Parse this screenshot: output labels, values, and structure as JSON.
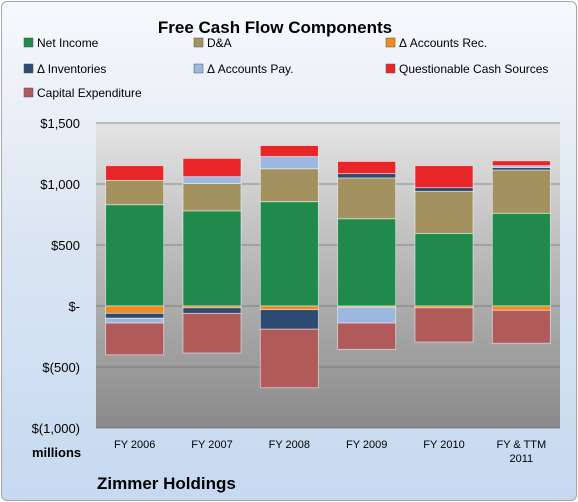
{
  "chart_data": {
    "type": "bar",
    "stacked": true,
    "title": "Free Cash Flow Components",
    "units": "millions",
    "company": "Zimmer Holdings",
    "categories": [
      "FY 2006",
      "FY 2007",
      "FY 2008",
      "FY 2009",
      "FY 2010",
      "FY & TTM 2011"
    ],
    "ylim": [
      -1000,
      1500
    ],
    "yticks": [
      {
        "value": 1500,
        "label": "$1,500"
      },
      {
        "value": 1000,
        "label": "$1,000"
      },
      {
        "value": 500,
        "label": "$500"
      },
      {
        "value": 0,
        "label": "$-"
      },
      {
        "value": -500,
        "label": "$(500)"
      },
      {
        "value": -1000,
        "label": "$(1,000)"
      }
    ],
    "grid": true,
    "legend_position": "top",
    "series": [
      {
        "name": "Net Income",
        "color": "#1f8a4c",
        "values": [
          830,
          780,
          855,
          715,
          595,
          760
        ]
      },
      {
        "name": "D&A",
        "color": "#a39260",
        "values": [
          200,
          225,
          270,
          335,
          345,
          355
        ]
      },
      {
        "name": "Δ Accounts Rec.",
        "color": "#ef8b1c",
        "values": [
          -60,
          -15,
          -30,
          -10,
          -15,
          -35
        ]
      },
      {
        "name": "Δ Inventories",
        "color": "#2c4a72",
        "values": [
          -40,
          -45,
          -160,
          35,
          30,
          20
        ]
      },
      {
        "name": "Δ Accounts Pay.",
        "color": "#9bb9e0",
        "values": [
          -40,
          55,
          100,
          -130,
          0,
          15
        ]
      },
      {
        "name": "Questionable Cash Sources",
        "color": "#e8262a",
        "values": [
          120,
          150,
          90,
          100,
          180,
          40
        ]
      },
      {
        "name": "Capital Expenditure",
        "color": "#b05a5a",
        "values": [
          -260,
          -325,
          -480,
          -215,
          -280,
          -270
        ]
      }
    ]
  }
}
